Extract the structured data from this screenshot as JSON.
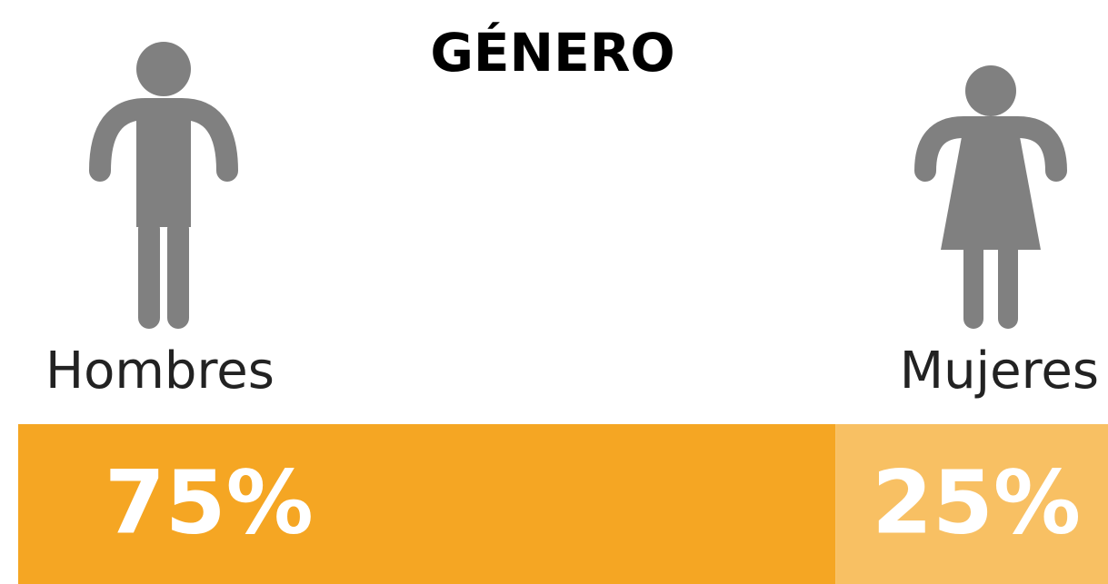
{
  "chart_data": {
    "type": "stacked_bar",
    "title": "GÉNERO",
    "xlim": [
      0,
      100
    ],
    "series": [
      {
        "name": "Hombres",
        "color": "#f5a623",
        "values": [
          75
        ],
        "value_labels": [
          "75%"
        ]
      },
      {
        "name": "Mujeres",
        "color": "#f8c063",
        "values": [
          25
        ],
        "value_labels": [
          "25%"
        ]
      }
    ]
  }
}
